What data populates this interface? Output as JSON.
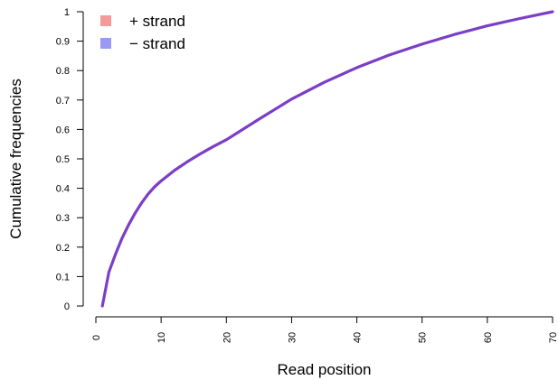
{
  "chart_data": {
    "type": "line",
    "xlabel": "Read position",
    "ylabel": "Cumulative frequencies",
    "xlim": [
      0,
      70
    ],
    "ylim": [
      0,
      1
    ],
    "x_ticks": [
      "0",
      "10",
      "20",
      "30",
      "40",
      "50",
      "60",
      "70"
    ],
    "y_ticks": [
      "0",
      "0.1",
      "0.2",
      "0.3",
      "0.4",
      "0.5",
      "0.6",
      "0.7",
      "0.8",
      "0.9",
      "1"
    ],
    "grid": false,
    "legend": {
      "position": "top-left",
      "entries": [
        {
          "label": "+ strand",
          "color": "#f49a9a"
        },
        {
          "label": "− strand",
          "color": "#9a9af4"
        }
      ]
    },
    "series": [
      {
        "color": "#7b3ec6",
        "x": [
          1,
          2,
          3,
          4,
          5,
          6,
          7,
          8,
          9,
          10,
          12,
          14,
          16,
          18,
          20,
          25,
          30,
          35,
          40,
          45,
          50,
          55,
          60,
          65,
          70
        ],
        "y": [
          0.0,
          0.115,
          0.175,
          0.23,
          0.275,
          0.315,
          0.35,
          0.38,
          0.405,
          0.425,
          0.46,
          0.49,
          0.517,
          0.542,
          0.565,
          0.635,
          0.703,
          0.76,
          0.81,
          0.853,
          0.89,
          0.923,
          0.952,
          0.977,
          1.0
        ]
      }
    ]
  }
}
